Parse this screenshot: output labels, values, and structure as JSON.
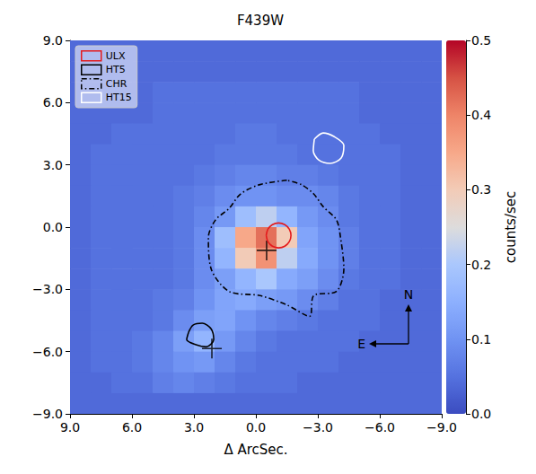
{
  "chart_data": {
    "type": "heatmap",
    "title": "F439W",
    "xlabel": "Δ ArcSec.",
    "xlim": [
      9,
      -9
    ],
    "ylim": [
      -9,
      9
    ],
    "xticks": [
      {
        "value": 9,
        "label": "9.0"
      },
      {
        "value": 6,
        "label": "6.0"
      },
      {
        "value": 3,
        "label": "3.0"
      },
      {
        "value": 0,
        "label": "0.0"
      },
      {
        "value": -3,
        "label": "−3.0"
      },
      {
        "value": -6,
        "label": "−6.0"
      },
      {
        "value": -9,
        "label": "−9.0"
      }
    ],
    "yticks": [
      {
        "value": -9,
        "label": "−9.0"
      },
      {
        "value": -6,
        "label": "−6.0"
      },
      {
        "value": -3,
        "label": "−3.0"
      },
      {
        "value": 0,
        "label": "0.0"
      },
      {
        "value": 3,
        "label": "3.0"
      },
      {
        "value": 6,
        "label": "6.0"
      },
      {
        "value": 9,
        "label": "9.0"
      }
    ],
    "grid": false,
    "legend": "upper left",
    "heatmap": {
      "x": [
        8.5,
        7.5,
        6.5,
        5.5,
        4.5,
        3.5,
        2.5,
        1.5,
        0.5,
        -0.5,
        -1.5,
        -2.5,
        -3.5,
        -4.5,
        -5.5,
        -6.5,
        -7.5,
        -8.5
      ],
      "y": [
        8.5,
        7.5,
        6.5,
        5.5,
        4.5,
        3.5,
        2.5,
        1.5,
        0.5,
        -0.5,
        -1.5,
        -2.5,
        -3.5,
        -4.5,
        -5.5,
        -6.5,
        -7.5,
        -8.5
      ],
      "values": [
        [
          0.04,
          0.04,
          0.04,
          0.04,
          0.04,
          0.04,
          0.04,
          0.04,
          0.04,
          0.04,
          0.04,
          0.04,
          0.04,
          0.04,
          0.04,
          0.04,
          0.04,
          0.04
        ],
        [
          0.04,
          0.04,
          0.04,
          0.04,
          0.04,
          0.04,
          0.04,
          0.04,
          0.04,
          0.04,
          0.04,
          0.04,
          0.04,
          0.04,
          0.04,
          0.04,
          0.04,
          0.04
        ],
        [
          0.04,
          0.04,
          0.04,
          0.04,
          0.05,
          0.05,
          0.05,
          0.05,
          0.05,
          0.05,
          0.05,
          0.05,
          0.05,
          0.05,
          0.04,
          0.04,
          0.04,
          0.04
        ],
        [
          0.04,
          0.04,
          0.04,
          0.04,
          0.05,
          0.05,
          0.05,
          0.05,
          0.05,
          0.05,
          0.05,
          0.05,
          0.05,
          0.05,
          0.04,
          0.04,
          0.04,
          0.04
        ],
        [
          0.04,
          0.04,
          0.05,
          0.05,
          0.05,
          0.05,
          0.05,
          0.05,
          0.06,
          0.06,
          0.05,
          0.05,
          0.05,
          0.05,
          0.05,
          0.04,
          0.04,
          0.04
        ],
        [
          0.04,
          0.05,
          0.05,
          0.05,
          0.05,
          0.05,
          0.05,
          0.06,
          0.06,
          0.06,
          0.06,
          0.05,
          0.05,
          0.05,
          0.05,
          0.05,
          0.04,
          0.04
        ],
        [
          0.04,
          0.05,
          0.05,
          0.05,
          0.05,
          0.05,
          0.06,
          0.07,
          0.08,
          0.08,
          0.07,
          0.07,
          0.06,
          0.05,
          0.05,
          0.05,
          0.04,
          0.04
        ],
        [
          0.04,
          0.05,
          0.05,
          0.05,
          0.05,
          0.06,
          0.07,
          0.09,
          0.1,
          0.1,
          0.09,
          0.09,
          0.08,
          0.06,
          0.05,
          0.05,
          0.04,
          0.04
        ],
        [
          0.04,
          0.05,
          0.05,
          0.05,
          0.05,
          0.06,
          0.08,
          0.11,
          0.18,
          0.22,
          0.16,
          0.11,
          0.09,
          0.06,
          0.05,
          0.05,
          0.04,
          0.04
        ],
        [
          0.04,
          0.05,
          0.05,
          0.05,
          0.05,
          0.06,
          0.09,
          0.18,
          0.35,
          0.42,
          0.3,
          0.13,
          0.1,
          0.07,
          0.05,
          0.05,
          0.04,
          0.04
        ],
        [
          0.04,
          0.05,
          0.05,
          0.05,
          0.05,
          0.06,
          0.09,
          0.16,
          0.3,
          0.38,
          0.22,
          0.14,
          0.1,
          0.07,
          0.05,
          0.05,
          0.04,
          0.04
        ],
        [
          0.04,
          0.05,
          0.05,
          0.05,
          0.05,
          0.06,
          0.09,
          0.12,
          0.16,
          0.2,
          0.14,
          0.12,
          0.09,
          0.06,
          0.05,
          0.05,
          0.04,
          0.04
        ],
        [
          0.04,
          0.05,
          0.05,
          0.05,
          0.06,
          0.07,
          0.1,
          0.13,
          0.14,
          0.12,
          0.11,
          0.09,
          0.07,
          0.05,
          0.05,
          0.04,
          0.04,
          0.04
        ],
        [
          0.04,
          0.05,
          0.05,
          0.05,
          0.06,
          0.09,
          0.12,
          0.13,
          0.1,
          0.08,
          0.07,
          0.06,
          0.05,
          0.05,
          0.05,
          0.04,
          0.04,
          0.04
        ],
        [
          0.04,
          0.05,
          0.05,
          0.06,
          0.08,
          0.12,
          0.16,
          0.11,
          0.08,
          0.06,
          0.05,
          0.05,
          0.05,
          0.05,
          0.04,
          0.04,
          0.04,
          0.04
        ],
        [
          0.04,
          0.05,
          0.05,
          0.06,
          0.08,
          0.1,
          0.11,
          0.08,
          0.06,
          0.05,
          0.05,
          0.05,
          0.05,
          0.04,
          0.04,
          0.04,
          0.04,
          0.04
        ],
        [
          0.04,
          0.04,
          0.05,
          0.05,
          0.07,
          0.08,
          0.07,
          0.06,
          0.05,
          0.05,
          0.05,
          0.04,
          0.04,
          0.04,
          0.04,
          0.04,
          0.04,
          0.04
        ],
        [
          0.04,
          0.04,
          0.04,
          0.04,
          0.04,
          0.04,
          0.04,
          0.04,
          0.04,
          0.04,
          0.04,
          0.04,
          0.04,
          0.04,
          0.04,
          0.04,
          0.04,
          0.04
        ]
      ]
    },
    "colorbar": {
      "lim": [
        0,
        0.5
      ],
      "ticks": [
        {
          "value": 0,
          "label": "0.0"
        },
        {
          "value": 0.1,
          "label": "0.1"
        },
        {
          "value": 0.2,
          "label": "0.2"
        },
        {
          "value": 0.3,
          "label": "0.3"
        },
        {
          "value": 0.4,
          "label": "0.4"
        },
        {
          "value": 0.5,
          "label": "0.5"
        }
      ],
      "label": "counts/sec"
    },
    "series": [
      {
        "name": "ULX",
        "color": "#e41a1c",
        "line_style": "solid",
        "x": [
          -0.5,
          -0.58,
          -0.8,
          -1.1,
          -1.4,
          -1.62,
          -1.7,
          -1.62,
          -1.4,
          -1.1,
          -0.8,
          -0.58
        ],
        "y": [
          -0.4,
          -0.1,
          0.12,
          0.2,
          0.12,
          -0.1,
          -0.4,
          -0.7,
          -0.92,
          -1.0,
          -0.92,
          -0.7
        ]
      },
      {
        "name": "HT5",
        "color": "#000000",
        "line_style": "solid",
        "x": [
          3.26,
          3.04,
          2.6,
          2.17,
          2.04,
          2.4,
          2.9,
          3.35
        ],
        "y": [
          -5.07,
          -4.72,
          -4.63,
          -4.9,
          -5.42,
          -5.77,
          -5.67,
          -5.42
        ]
      },
      {
        "name": "CHR",
        "color": "#000000",
        "line_style": "dashdot",
        "x": [
          -1.5,
          -0.2,
          0.74,
          1.3,
          1.95,
          2.3,
          2.17,
          1.3,
          -0.2,
          -1.5,
          -2.6,
          -2.8,
          -3.9,
          -4.26,
          -4.1,
          -3.9,
          -3.25,
          -2.8,
          -2.2
        ],
        "y": [
          2.26,
          2.05,
          1.6,
          0.9,
          0.35,
          -0.5,
          -2.0,
          -3.1,
          -3.3,
          -3.75,
          -4.3,
          -3.3,
          -3.1,
          -2.0,
          -0.5,
          0.35,
          1.0,
          1.6,
          2.05
        ]
      },
      {
        "name": "HT15",
        "color": "#ffffff",
        "line_style": "solid",
        "x": [
          -2.83,
          -3.26,
          -3.78,
          -4.26,
          -4.13,
          -3.6,
          -3.04,
          -2.78
        ],
        "y": [
          4.24,
          4.54,
          4.37,
          3.94,
          3.33,
          3.07,
          3.24,
          3.68
        ]
      }
    ],
    "markers": {
      "x": [
        -0.52,
        2.13
      ],
      "y": [
        -1.12,
        -5.85
      ],
      "marker": "cross",
      "color": "#000000"
    },
    "compass": {
      "north": "N",
      "east": "E"
    }
  }
}
